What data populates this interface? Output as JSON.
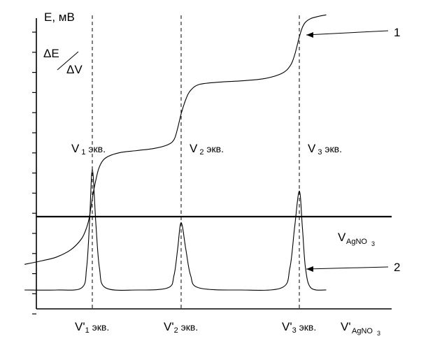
{
  "chart_data": {
    "type": "line",
    "title": "",
    "ylabel": "E, мВ",
    "y2label": "ΔE/ΔV",
    "xlabel_upper": "VAgNO3",
    "xlabel_lower": "V'AgNO3",
    "x_range": [
      0,
      4.2
    ],
    "y_range": [
      -1.3,
      2.8
    ],
    "equivalence_points": [
      {
        "x": 1.0,
        "upper_label": "V",
        "upper_sub": "1",
        "upper_suffix": " экв.",
        "lower_label": "V'",
        "lower_sub": "1",
        "lower_suffix": " экв."
      },
      {
        "x": 2.0,
        "upper_label": "V",
        "upper_sub": "2",
        "upper_suffix": " экв.",
        "lower_label": "V'",
        "lower_sub": "2",
        "lower_suffix": " экв."
      },
      {
        "x": 3.0,
        "upper_label": "V",
        "upper_sub": "3",
        "upper_suffix": " экв.",
        "lower_label": "V'",
        "lower_sub": "3",
        "lower_suffix": " экв."
      }
    ],
    "series": [
      {
        "name": "1",
        "x": [
          0.05,
          0.3,
          0.5,
          0.7,
          0.85,
          0.92,
          0.96,
          1.0,
          1.04,
          1.08,
          1.15,
          1.3,
          1.5,
          1.7,
          1.85,
          1.92,
          1.96,
          2.0,
          2.04,
          2.08,
          2.15,
          2.3,
          2.5,
          2.7,
          2.85,
          2.92,
          2.96,
          3.0,
          3.04,
          3.08,
          3.15,
          3.25,
          3.35
        ],
        "values": [
          -0.65,
          -0.6,
          -0.55,
          -0.45,
          -0.3,
          -0.15,
          0.0,
          0.25,
          0.5,
          0.68,
          0.8,
          0.87,
          0.9,
          0.93,
          0.98,
          1.05,
          1.2,
          1.4,
          1.6,
          1.72,
          1.8,
          1.83,
          1.85,
          1.88,
          1.95,
          2.05,
          2.2,
          2.45,
          2.58,
          2.65,
          2.7,
          2.73,
          2.75
        ]
      },
      {
        "name": "2",
        "x": [
          0.05,
          0.5,
          0.85,
          0.92,
          0.96,
          1.0,
          1.04,
          1.08,
          1.15,
          1.5,
          1.85,
          1.92,
          1.96,
          2.0,
          2.04,
          2.08,
          2.15,
          2.5,
          2.85,
          2.92,
          2.96,
          3.0,
          3.04,
          3.08,
          3.15,
          3.35
        ],
        "values": [
          -1.0,
          -1.0,
          -0.97,
          -0.7,
          -0.1,
          0.65,
          -0.1,
          -0.7,
          -0.97,
          -1.0,
          -0.97,
          -0.8,
          -0.45,
          -0.08,
          -0.45,
          -0.8,
          -0.97,
          -1.0,
          -0.97,
          -0.7,
          -0.15,
          0.35,
          -0.15,
          -0.7,
          -0.97,
          -1.0
        ]
      }
    ],
    "curve_labels": [
      "1",
      "2"
    ]
  }
}
